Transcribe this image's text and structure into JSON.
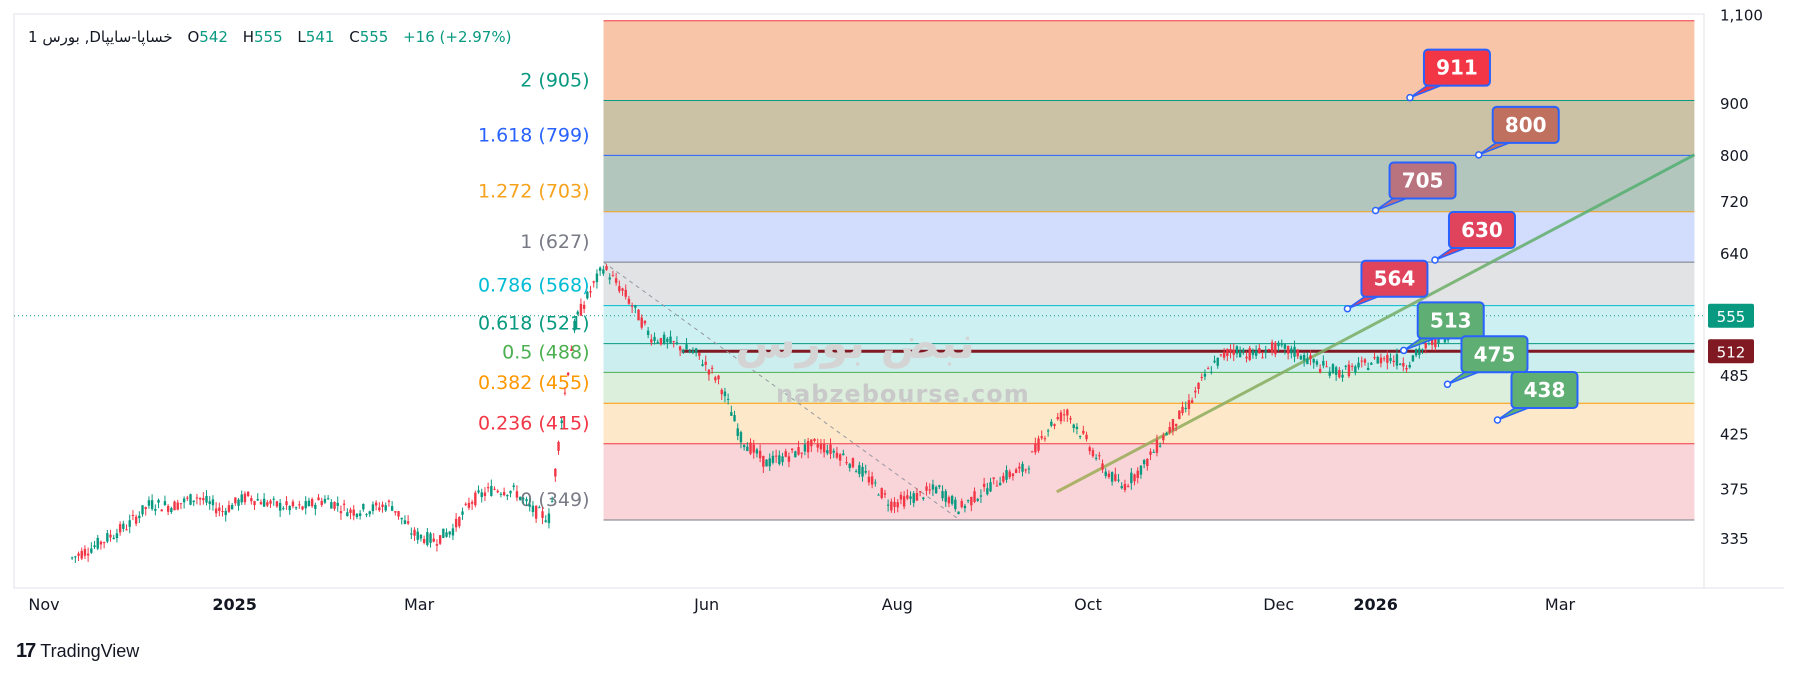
{
  "header": {
    "interval": "1",
    "symbol": "بورس ,Dخساپا-سایپا",
    "open_label": "O",
    "open": "542",
    "high_label": "H",
    "high": "555",
    "low_label": "L",
    "low": "541",
    "close_label": "C",
    "close": "555",
    "change": "+16 (+2.97%)"
  },
  "watermark": {
    "domain": "nabzebourse.com",
    "persian": "نبض بورس"
  },
  "branding": {
    "logo": "17",
    "name": "TradingView"
  },
  "chart_data": {
    "type": "candlestick",
    "y_scale": "log",
    "ylim": [
      318,
      1120
    ],
    "y_ticks": [
      {
        "value": 1100,
        "label": "1,100"
      },
      {
        "value": 900,
        "label": "900"
      },
      {
        "value": 800,
        "label": "800"
      },
      {
        "value": 720,
        "label": "720"
      },
      {
        "value": 640,
        "label": "640"
      },
      {
        "value": 485,
        "label": "485"
      },
      {
        "value": 425,
        "label": "425"
      },
      {
        "value": 375,
        "label": "375"
      },
      {
        "value": 335,
        "label": "335"
      }
    ],
    "x_ticks": [
      {
        "date": "2024-11-01",
        "label": "Nov",
        "bold": false
      },
      {
        "date": "2025-01-01",
        "label": "2025",
        "bold": true
      },
      {
        "date": "2025-03-01",
        "label": "Mar",
        "bold": false
      },
      {
        "date": "2025-06-01",
        "label": "Jun",
        "bold": false
      },
      {
        "date": "2025-08-01",
        "label": "Aug",
        "bold": false
      },
      {
        "date": "2025-10-01",
        "label": "Oct",
        "bold": false
      },
      {
        "date": "2025-12-01",
        "label": "Dec",
        "bold": false
      },
      {
        "date": "2026-01-01",
        "label": "2026",
        "bold": true
      },
      {
        "date": "2026-03-01",
        "label": "Mar",
        "bold": false
      }
    ],
    "price_tags": [
      {
        "value": 555,
        "label": "555",
        "color": "#089981"
      },
      {
        "value": 512,
        "label": "512",
        "color": "#801922"
      }
    ],
    "fib_levels": [
      {
        "ratio": "2",
        "price": 905,
        "label": "2 (905)",
        "line": "#089981",
        "fill": "#f8c5a8"
      },
      {
        "ratio": "1.618",
        "price": 799,
        "label": "1.618 (799)",
        "line": "#2962ff",
        "fill": "#cbc1a4"
      },
      {
        "ratio": "1.272",
        "price": 703,
        "label": "1.272 (703)",
        "line": "#f7a21b",
        "fill": "#b3c6bd"
      },
      {
        "ratio": "1",
        "price": 627,
        "label": "1 (627)",
        "line": "#787b86",
        "fill": "#d2dcfd"
      },
      {
        "ratio": "0.786",
        "price": 568,
        "label": "0.786 (568)",
        "line": "#00bcd4",
        "fill": "#e2e3e5"
      },
      {
        "ratio": "0.618",
        "price": 521,
        "label": "0.618 (521)",
        "line": "#089981",
        "fill": "#cdf0f2"
      },
      {
        "ratio": "0.5",
        "price": 488,
        "label": "0.5 (488)",
        "line": "#4caf50",
        "fill": "#cdeeee"
      },
      {
        "ratio": "0.382",
        "price": 455,
        "label": "0.382 (455)",
        "line": "#ff9800",
        "fill": "#dcefdd"
      },
      {
        "ratio": "0.236",
        "price": 415,
        "label": "0.236 (415)",
        "line": "#f23645",
        "fill": "#fde9c9"
      },
      {
        "ratio": "0",
        "price": 349,
        "label": "0 (349)",
        "line": "#787b86",
        "fill": "#f9d5d9"
      }
    ],
    "fib_top_line": 1085,
    "fib_start_date": "2025-04-29",
    "fib_end_date": "2026-04-13",
    "horizontal_line": {
      "price": 512,
      "color": "#801922",
      "start_date": "2025-05-24",
      "end_date": "2026-04-13"
    },
    "trendline": {
      "start_date": "2025-09-21",
      "start_price": 372,
      "end_date": "2026-04-13",
      "end_price": 800
    },
    "fib_anchor_line": {
      "start_date": "2025-04-29",
      "start_price": 627,
      "end_date": "2025-08-21",
      "end_price": 349
    },
    "callouts": [
      {
        "label": "911",
        "color": "#f23645",
        "date": "2026-01-12",
        "price": 911
      },
      {
        "label": "800",
        "color": "#c0705e",
        "date": "2026-02-03",
        "price": 800
      },
      {
        "label": "705",
        "color": "#b9737f",
        "date": "2026-01-01",
        "price": 705
      },
      {
        "label": "630",
        "color": "#e0435c",
        "date": "2026-01-20",
        "price": 630
      },
      {
        "label": "564",
        "color": "#e0435c",
        "date": "2025-12-23",
        "price": 564
      },
      {
        "label": "513",
        "color": "#5fae73",
        "date": "2026-01-10",
        "price": 513
      },
      {
        "label": "475",
        "color": "#5fae73",
        "date": "2026-01-24",
        "price": 475
      },
      {
        "label": "438",
        "color": "#5fae73",
        "date": "2026-02-09",
        "price": 438
      }
    ],
    "candle_path": [
      [
        "2024-11-10",
        320
      ],
      [
        "2024-11-18",
        330
      ],
      [
        "2024-11-28",
        345
      ],
      [
        "2024-12-05",
        362
      ],
      [
        "2024-12-12",
        360
      ],
      [
        "2024-12-20",
        368
      ],
      [
        "2024-12-28",
        356
      ],
      [
        "2025-01-05",
        368
      ],
      [
        "2025-01-14",
        361
      ],
      [
        "2025-01-22",
        358
      ],
      [
        "2025-01-30",
        366
      ],
      [
        "2025-02-07",
        356
      ],
      [
        "2025-02-14",
        358
      ],
      [
        "2025-02-20",
        362
      ],
      [
        "2025-02-27",
        338
      ],
      [
        "2025-03-06",
        333
      ],
      [
        "2025-03-12",
        342
      ],
      [
        "2025-03-18",
        365
      ],
      [
        "2025-03-25",
        375
      ],
      [
        "2025-04-01",
        372
      ],
      [
        "2025-04-06",
        357
      ],
      [
        "2025-04-12",
        350
      ],
      [
        "2025-04-20",
        548
      ],
      [
        "2025-04-29",
        620
      ],
      [
        "2025-05-06",
        582
      ],
      [
        "2025-05-14",
        530
      ],
      [
        "2025-05-22",
        520
      ],
      [
        "2025-05-29",
        508
      ],
      [
        "2025-06-05",
        478
      ],
      [
        "2025-06-12",
        420
      ],
      [
        "2025-06-20",
        397
      ],
      [
        "2025-06-28",
        405
      ],
      [
        "2025-07-06",
        415
      ],
      [
        "2025-07-14",
        405
      ],
      [
        "2025-07-22",
        386
      ],
      [
        "2025-07-30",
        362
      ],
      [
        "2025-08-07",
        368
      ],
      [
        "2025-08-14",
        375
      ],
      [
        "2025-08-21",
        358
      ],
      [
        "2025-08-28",
        372
      ],
      [
        "2025-09-04",
        385
      ],
      [
        "2025-09-11",
        392
      ],
      [
        "2025-09-18",
        430
      ],
      [
        "2025-09-24",
        446
      ],
      [
        "2025-09-30",
        420
      ],
      [
        "2025-10-06",
        392
      ],
      [
        "2025-10-12",
        376
      ],
      [
        "2025-10-19",
        395
      ],
      [
        "2025-10-26",
        425
      ],
      [
        "2025-11-02",
        452
      ],
      [
        "2025-11-09",
        492
      ],
      [
        "2025-11-16",
        515
      ],
      [
        "2025-11-23",
        508
      ],
      [
        "2025-11-30",
        516
      ],
      [
        "2025-12-07",
        510
      ],
      [
        "2025-12-14",
        495
      ],
      [
        "2025-12-21",
        488
      ],
      [
        "2025-12-28",
        495
      ],
      [
        "2026-01-04",
        506
      ],
      [
        "2026-01-11",
        498
      ],
      [
        "2026-01-18",
        520
      ],
      [
        "2026-01-24",
        532
      ],
      [
        "2026-01-30",
        555
      ]
    ]
  }
}
